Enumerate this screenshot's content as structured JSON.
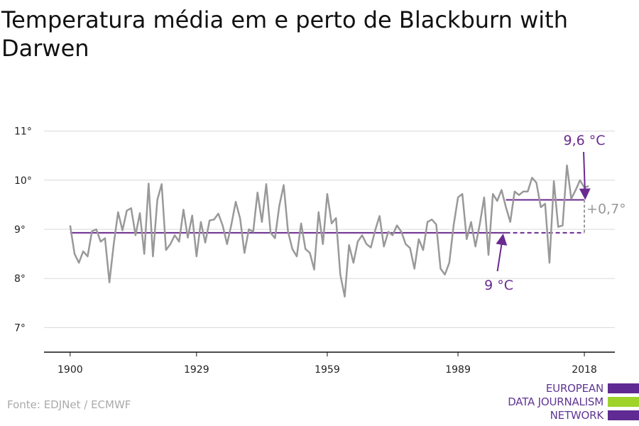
{
  "title": "Temperatura média em e perto de Blackburn with Darwen",
  "source": "Fonte: EDJNet / ECMWF",
  "logo": {
    "lines": [
      "EUROPEAN",
      "DATA JOURNALISM",
      "NETWORK"
    ],
    "bar_colors": [
      "#5f2a91",
      "#9ed32a",
      "#5f2a91"
    ]
  },
  "colors": {
    "series": "#999999",
    "accent": "#6a2a8f",
    "grid": "#d9d9d9",
    "delta": "#999999"
  },
  "chart_data": {
    "type": "line",
    "x": [
      1900,
      1901,
      1902,
      1903,
      1904,
      1905,
      1906,
      1907,
      1908,
      1909,
      1910,
      1911,
      1912,
      1913,
      1914,
      1915,
      1916,
      1917,
      1918,
      1919,
      1920,
      1921,
      1922,
      1923,
      1924,
      1925,
      1926,
      1927,
      1928,
      1929,
      1930,
      1931,
      1932,
      1933,
      1934,
      1935,
      1936,
      1937,
      1938,
      1939,
      1940,
      1941,
      1942,
      1943,
      1944,
      1945,
      1946,
      1947,
      1948,
      1949,
      1950,
      1951,
      1952,
      1953,
      1954,
      1955,
      1956,
      1957,
      1958,
      1959,
      1960,
      1961,
      1962,
      1963,
      1964,
      1965,
      1966,
      1967,
      1968,
      1969,
      1970,
      1971,
      1972,
      1973,
      1974,
      1975,
      1976,
      1977,
      1978,
      1979,
      1980,
      1981,
      1982,
      1983,
      1984,
      1985,
      1986,
      1987,
      1988,
      1989,
      1990,
      1991,
      1992,
      1993,
      1994,
      1995,
      1996,
      1997,
      1998,
      1999,
      2000,
      2001,
      2002,
      2003,
      2004,
      2005,
      2006,
      2007,
      2008,
      2009,
      2010,
      2011,
      2012,
      2013,
      2014,
      2015,
      2016,
      2017,
      2018,
      2019
    ],
    "series": [
      {
        "values": [
          9.08,
          8.5,
          8.32,
          8.55,
          8.45,
          8.96,
          9.0,
          8.75,
          8.82,
          7.92,
          8.7,
          9.35,
          8.98,
          9.38,
          9.43,
          8.88,
          9.33,
          8.5,
          9.93,
          8.45,
          9.6,
          9.92,
          8.58,
          8.7,
          8.88,
          8.75,
          9.4,
          8.83,
          9.28,
          8.45,
          9.15,
          8.73,
          9.18,
          9.2,
          9.32,
          9.08,
          8.7,
          9.1,
          9.56,
          9.22,
          8.52,
          9.0,
          8.95,
          9.75,
          9.15,
          9.92,
          8.93,
          8.82,
          9.48,
          9.9,
          8.95,
          8.6,
          8.45,
          9.12,
          8.6,
          8.52,
          8.18,
          9.35,
          8.7,
          9.72,
          9.12,
          9.23,
          8.08,
          7.63,
          8.68,
          8.32,
          8.75,
          8.88,
          8.7,
          8.63,
          8.98,
          9.27,
          8.65,
          8.95,
          8.88,
          9.08,
          8.95,
          8.7,
          8.62,
          8.2,
          8.8,
          8.58,
          9.15,
          9.2,
          9.1,
          8.2,
          8.08,
          8.32,
          9.08,
          9.65,
          9.72,
          8.8,
          9.15,
          8.65,
          9.1,
          9.65,
          8.48,
          9.72,
          9.58,
          9.8,
          9.45,
          9.15,
          9.77,
          9.7,
          9.77,
          9.77,
          10.05,
          9.95,
          9.45,
          9.52,
          8.32,
          9.98,
          9.05,
          9.08,
          10.3,
          9.62,
          9.8,
          10.0,
          9.85,
          9.88
        ]
      }
    ],
    "x_ticks": [
      1900,
      1929,
      1959,
      1989,
      2018
    ],
    "y_ticks": [
      7,
      8,
      9,
      10,
      11
    ],
    "y_tick_labels": [
      "7°",
      "8°",
      "9°",
      "10°",
      "11°"
    ],
    "ylim": [
      6.5,
      11.5
    ],
    "xlim": [
      1894,
      2025
    ],
    "grid": true,
    "reference_lines": [
      {
        "label": "9 °C",
        "value": 8.93,
        "x_start": 1900,
        "x_end": 2000,
        "dashed_to": 2018
      },
      {
        "label": "9,6 °C",
        "value": 9.6,
        "x_start": 2000,
        "x_end": 2018
      }
    ],
    "delta_label": "+0,7°",
    "xlabel": "",
    "ylabel": ""
  }
}
